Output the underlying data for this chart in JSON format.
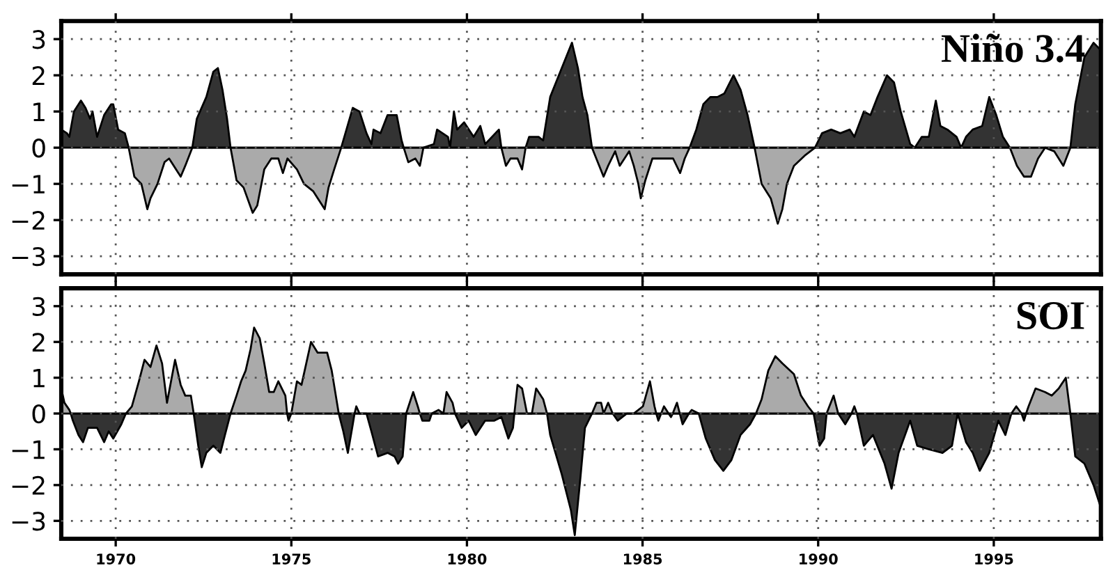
{
  "chart_data": [
    {
      "type": "area",
      "title": "Niño 3.4",
      "xlim": [
        1968.45,
        1998.05
      ],
      "ylim": [
        -3.5,
        3.5
      ],
      "xticks": [
        1970,
        1975,
        1980,
        1985,
        1990,
        1995
      ],
      "yticks": [
        {
          "value": -3,
          "label": "−3"
        },
        {
          "value": -2,
          "label": "−2"
        },
        {
          "value": -1,
          "label": "−1"
        },
        0,
        1,
        2,
        3
      ],
      "tick_labels": "y",
      "grid": true,
      "legend": false,
      "series": [
        {
          "color": "#333333",
          "x": [
            1968.45,
            1968.61,
            1968.68,
            1968.81,
            1969.01,
            1969.14,
            1969.27,
            1969.34,
            1969.47,
            1969.67,
            1969.87,
            1969.93,
            1970.07,
            1970.26,
            1970.37,
            1972.18,
            1972.31,
            1972.58,
            1972.78,
            1972.91,
            1973.04,
            1973.17,
            1973.27,
            1976.42,
            1976.75,
            1976.94,
            1977.14,
            1977.28,
            1977.34,
            1977.54,
            1977.74,
            1978.0,
            1978.14,
            1978.2,
            1978.76,
            1979.06,
            1979.15,
            1979.46,
            1979.52,
            1979.63,
            1979.72,
            1979.92,
            1980.19,
            1980.38,
            1980.52,
            1980.91,
            1980.98,
            1981.67,
            1981.77,
            1982.04,
            1982.17,
            1982.37,
            1982.7,
            1982.99,
            1983.16,
            1983.29,
            1983.43,
            1983.56,
            1986.34,
            1986.53,
            1986.73,
            1986.93,
            1987.13,
            1987.33,
            1987.59,
            1987.79,
            1987.99,
            1988.19,
            1989.91,
            1990.11,
            1990.37,
            1990.63,
            1990.9,
            1991.03,
            1991.3,
            1991.49,
            1991.69,
            1991.96,
            1992.16,
            1992.35,
            1992.62,
            1992.75,
            1992.95,
            1993.15,
            1993.35,
            1993.48,
            1993.68,
            1993.94,
            1994.07,
            1994.21,
            1994.4,
            1994.67,
            1994.87,
            1995.07,
            1995.26,
            1995.46,
            1996.46,
            1997.18,
            1997.32,
            1997.58,
            1997.84,
            1998.04
          ],
          "values": [
            0.5,
            0.4,
            0.3,
            1.0,
            1.3,
            1.1,
            0.8,
            1.0,
            0.3,
            0.9,
            1.2,
            1.2,
            0.5,
            0.4,
            0,
            0,
            0.8,
            1.4,
            2.1,
            2.2,
            1.6,
            0.8,
            0,
            0,
            1.1,
            1.0,
            0.4,
            0.1,
            0.5,
            0.4,
            0.9,
            0.9,
            0.2,
            0,
            0,
            0.1,
            0.5,
            0.3,
            0,
            1.0,
            0.5,
            0.7,
            0.3,
            0.6,
            0.1,
            0.5,
            0,
            0,
            0.3,
            0.3,
            0.2,
            1.4,
            2.2,
            2.9,
            2.2,
            1.4,
            0.9,
            0,
            0,
            0.5,
            1.2,
            1.4,
            1.4,
            1.5,
            2.0,
            1.6,
            0.9,
            0,
            0,
            0.4,
            0.5,
            0.4,
            0.5,
            0.3,
            1.0,
            0.9,
            1.4,
            2.0,
            1.8,
            1.0,
            0.1,
            0,
            0.3,
            0.3,
            1.3,
            0.6,
            0.5,
            0.3,
            0,
            0.3,
            0.5,
            0.6,
            1.4,
            0.9,
            0.3,
            0,
            0,
            0,
            1.2,
            2.5,
            2.9,
            2.7
          ]
        },
        {
          "color": "#aaaaaa",
          "x": [
            1970.37,
            1970.53,
            1970.73,
            1970.9,
            1970.99,
            1971.19,
            1971.39,
            1971.52,
            1971.85,
            1971.98,
            1972.18,
            1973.27,
            1973.44,
            1973.64,
            1973.9,
            1974.03,
            1974.23,
            1974.43,
            1974.63,
            1974.76,
            1974.89,
            1975.16,
            1975.36,
            1975.62,
            1975.95,
            1976.06,
            1976.22,
            1976.42,
            1978.2,
            1978.33,
            1978.53,
            1978.66,
            1978.76,
            1980.98,
            1981.11,
            1981.24,
            1981.44,
            1981.57,
            1981.67,
            1983.56,
            1983.89,
            1984.02,
            1984.22,
            1984.35,
            1984.62,
            1984.75,
            1984.88,
            1984.95,
            1985.08,
            1985.28,
            1985.68,
            1985.87,
            1986.07,
            1986.2,
            1986.34,
            1988.19,
            1988.39,
            1988.65,
            1988.85,
            1988.98,
            1989.11,
            1989.31,
            1989.64,
            1989.91,
            1995.46,
            1995.66,
            1995.86,
            1996.06,
            1996.26,
            1996.46,
            1996.72,
            1996.98,
            1997.18
          ],
          "values": [
            0,
            -0.8,
            -1.0,
            -1.7,
            -1.4,
            -1.0,
            -0.4,
            -0.3,
            -0.8,
            -0.5,
            0,
            0,
            -0.9,
            -1.1,
            -1.8,
            -1.6,
            -0.6,
            -0.3,
            -0.3,
            -0.7,
            -0.3,
            -0.6,
            -1.0,
            -1.2,
            -1.7,
            -1.1,
            -0.6,
            0,
            0,
            -0.4,
            -0.3,
            -0.5,
            0,
            0,
            -0.5,
            -0.3,
            -0.3,
            -0.6,
            0,
            0,
            -0.8,
            -0.5,
            -0.1,
            -0.5,
            -0.1,
            -0.5,
            -1.0,
            -1.4,
            -0.9,
            -0.3,
            -0.3,
            -0.3,
            -0.7,
            -0.3,
            0,
            0,
            -1.0,
            -1.4,
            -2.1,
            -1.7,
            -1.0,
            -0.5,
            -0.2,
            0,
            0,
            -0.5,
            -0.8,
            -0.8,
            -0.3,
            0,
            -0.1,
            -0.5,
            0
          ]
        }
      ]
    },
    {
      "type": "area",
      "title": "SOI",
      "xlim": [
        1968.45,
        1998.05
      ],
      "ylim": [
        -3.5,
        3.5
      ],
      "xticks": [
        1970,
        1975,
        1980,
        1985,
        1990,
        1995
      ],
      "yticks": [
        {
          "value": -3,
          "label": "−3"
        },
        {
          "value": -2,
          "label": "−2"
        },
        {
          "value": -1,
          "label": "−1"
        },
        0,
        1,
        2,
        3
      ],
      "grid": true,
      "legend": false,
      "series": [
        {
          "color": "#aaaaaa",
          "x": [
            1968.45,
            1968.54,
            1968.68,
            1968.72,
            1970.29,
            1970.46,
            1970.66,
            1970.82,
            1970.99,
            1971.16,
            1971.32,
            1971.46,
            1971.69,
            1971.85,
            1971.98,
            1972.14,
            1972.22,
            1973.27,
            1973.44,
            1973.57,
            1973.7,
            1973.84,
            1973.94,
            1974.1,
            1974.23,
            1974.37,
            1974.5,
            1974.63,
            1974.83,
            1974.88,
            1975.0,
            1975.16,
            1975.29,
            1975.56,
            1975.75,
            1976.02,
            1976.15,
            1976.35,
            1976.8,
            1976.85,
            1976.94,
            1978.27,
            1978.47,
            1978.6,
            1978.66,
            1979.0,
            1979.19,
            1979.33,
            1979.42,
            1979.59,
            1979.66,
            1981.35,
            1981.44,
            1981.57,
            1981.71,
            1981.85,
            1981.97,
            1982.17,
            1982.28,
            1983.56,
            1983.69,
            1983.82,
            1983.89,
            1984.02,
            1984.15,
            1984.75,
            1985.01,
            1985.21,
            1985.34,
            1985.39,
            1985.53,
            1985.61,
            1985.74,
            1985.86,
            1985.98,
            1986.06,
            1986.32,
            1986.4,
            1986.6,
            1988.23,
            1988.39,
            1988.58,
            1988.78,
            1988.98,
            1989.31,
            1989.51,
            1989.71,
            1989.87,
            1990.24,
            1990.44,
            1990.57,
            1990.95,
            1991.03,
            1991.1,
            1995.5,
            1995.64,
            1995.79,
            1995.92,
            1995.99,
            1996.19,
            1996.46,
            1996.65,
            1996.85,
            1997.05,
            1997.18
          ],
          "values": [
            0.7,
            0.3,
            0.1,
            0,
            0,
            0.2,
            0.9,
            1.5,
            1.3,
            1.9,
            1.4,
            0.3,
            1.5,
            0.8,
            0.5,
            0.5,
            0,
            0,
            0.5,
            0.9,
            1.2,
            1.8,
            2.4,
            2.1,
            1.4,
            0.6,
            0.6,
            0.9,
            0.5,
            0,
            0,
            0.9,
            0.8,
            2.0,
            1.7,
            1.7,
            1.2,
            0,
            0,
            0.2,
            0,
            0,
            0.6,
            0.2,
            0,
            0,
            0.1,
            0,
            0.6,
            0.3,
            0,
            0,
            0.8,
            0.7,
            0,
            0,
            0.7,
            0.4,
            0,
            0,
            0.3,
            0.3,
            0,
            0.3,
            0,
            0,
            0.2,
            0.9,
            0.2,
            0,
            0,
            0.2,
            0,
            0,
            0.3,
            0,
            0,
            0.1,
            0,
            0,
            0.4,
            1.2,
            1.6,
            1.4,
            1.1,
            0.5,
            0.2,
            0,
            0,
            0.5,
            0,
            0,
            0.2,
            0,
            0,
            0.2,
            0,
            0,
            0.2,
            0.7,
            0.6,
            0.5,
            0.7,
            1.0,
            0
          ]
        },
        {
          "color": "#333333",
          "x": [
            1968.72,
            1968.78,
            1968.94,
            1969.07,
            1969.21,
            1969.47,
            1969.67,
            1969.8,
            1969.93,
            1970.16,
            1970.29,
            1972.22,
            1972.35,
            1972.45,
            1972.58,
            1972.78,
            1972.98,
            1973.11,
            1973.27,
            1974.88,
            1974.92,
            1975.0,
            1976.35,
            1976.48,
            1976.61,
            1976.75,
            1976.8,
            1976.94,
            1977.14,
            1977.28,
            1977.47,
            1977.74,
            1977.94,
            1978.04,
            1978.17,
            1978.27,
            1978.66,
            1978.73,
            1978.93,
            1979.0,
            1979.66,
            1979.85,
            1980.05,
            1980.25,
            1980.52,
            1980.78,
            1980.98,
            1981.18,
            1981.31,
            1981.35,
            1982.28,
            1982.37,
            1982.7,
            1982.96,
            1983.07,
            1983.23,
            1983.36,
            1983.56,
            1984.15,
            1984.29,
            1984.55,
            1984.75,
            1985.39,
            1985.45,
            1985.53,
            1985.74,
            1985.81,
            1985.86,
            1986.06,
            1986.14,
            1986.32,
            1986.6,
            1986.8,
            1987.06,
            1987.3,
            1987.53,
            1987.79,
            1988.06,
            1988.23,
            1989.87,
            1990.04,
            1990.17,
            1990.24,
            1990.57,
            1990.77,
            1990.95,
            1991.1,
            1991.3,
            1991.56,
            1991.89,
            1992.09,
            1992.29,
            1992.62,
            1992.82,
            1993.15,
            1993.54,
            1993.81,
            1993.97,
            1994.21,
            1994.4,
            1994.6,
            1994.87,
            1995.13,
            1995.33,
            1995.5,
            1995.79,
            1995.86,
            1995.92,
            1997.18,
            1997.32,
            1997.58,
            1997.84,
            1998.04
          ],
          "values": [
            0,
            -0.2,
            -0.6,
            -0.8,
            -0.4,
            -0.4,
            -0.8,
            -0.5,
            -0.7,
            -0.3,
            0,
            0,
            -0.9,
            -1.5,
            -1.1,
            -0.9,
            -1.1,
            -0.6,
            0,
            0,
            -0.2,
            0,
            0,
            -0.5,
            -1.1,
            -0.3,
            0,
            0,
            0,
            -0.5,
            -1.2,
            -1.1,
            -1.2,
            -1.4,
            -1.2,
            0,
            0,
            -0.2,
            -0.2,
            0,
            0,
            -0.4,
            -0.2,
            -0.6,
            -0.2,
            -0.2,
            -0.1,
            -0.7,
            -0.4,
            0,
            0,
            -0.6,
            -1.7,
            -2.7,
            -3.4,
            -1.8,
            -0.4,
            0,
            0,
            -0.2,
            0,
            0,
            0,
            -0.2,
            0,
            0,
            -0.1,
            0,
            0,
            -0.3,
            0,
            0,
            -0.7,
            -1.3,
            -1.6,
            -1.3,
            -0.6,
            -0.3,
            0,
            0,
            -0.9,
            -0.7,
            0,
            0,
            -0.3,
            0,
            0,
            -0.9,
            -0.6,
            -1.4,
            -2.1,
            -1.1,
            -0.2,
            -0.9,
            -1.0,
            -1.1,
            -0.9,
            0,
            -0.8,
            -1.1,
            -1.6,
            -1.1,
            -0.2,
            -0.6,
            0,
            0,
            -0.2,
            0,
            0,
            -1.2,
            -1.4,
            -2.0,
            -2.6
          ]
        }
      ]
    }
  ]
}
